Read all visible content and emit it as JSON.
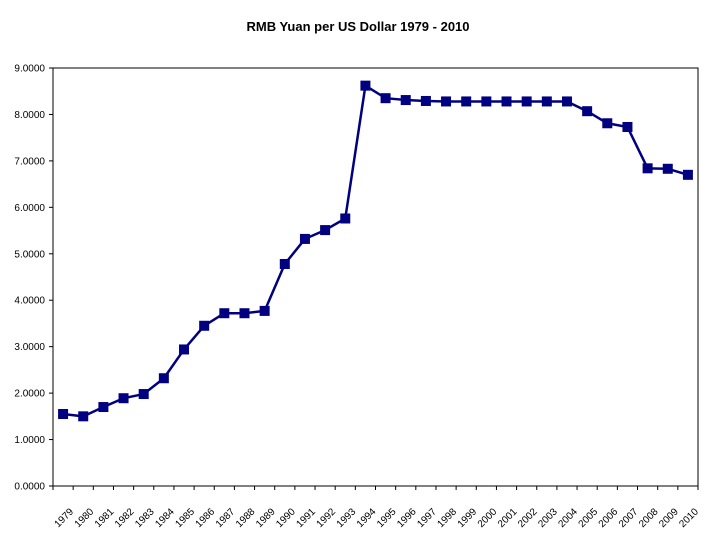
{
  "chart_data": {
    "type": "line",
    "title": "RMB Yuan per US Dollar 1979 - 2010",
    "xlabel": "",
    "ylabel": "",
    "x": [
      "1979",
      "1980",
      "1981",
      "1982",
      "1983",
      "1984",
      "1985",
      "1986",
      "1987",
      "1988",
      "1989",
      "1990",
      "1991",
      "1992",
      "1993",
      "1994",
      "1995",
      "1996",
      "1997",
      "1998",
      "1999",
      "2000",
      "2001",
      "2002",
      "2003",
      "2004",
      "2005",
      "2006",
      "2007",
      "2008",
      "2009",
      "2010"
    ],
    "series": [
      {
        "values": [
          1.55,
          1.5,
          1.7,
          1.89,
          1.98,
          2.32,
          2.94,
          3.45,
          3.72,
          3.72,
          3.77,
          4.78,
          5.32,
          5.51,
          5.76,
          8.62,
          8.35,
          8.31,
          8.29,
          8.28,
          8.28,
          8.28,
          8.28,
          8.28,
          8.28,
          8.28,
          8.07,
          7.81,
          7.73,
          6.84,
          6.83,
          6.7
        ],
        "color": "#000080"
      }
    ],
    "y_ticks": [
      "0.0000",
      "1.0000",
      "2.0000",
      "3.0000",
      "4.0000",
      "5.0000",
      "6.0000",
      "7.0000",
      "8.0000",
      "9.0000"
    ],
    "ylim": [
      0,
      9
    ],
    "grid": false,
    "legend": "none"
  }
}
